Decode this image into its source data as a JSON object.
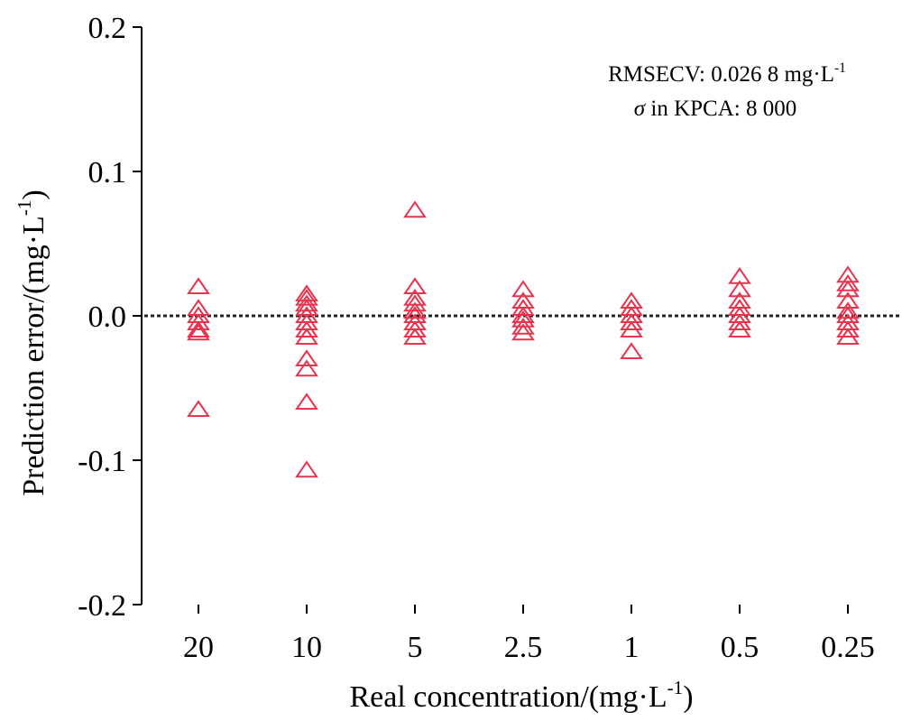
{
  "chart_data": {
    "type": "scatter",
    "y_label": {
      "text": "Prediction error/(mg·L",
      "sup": "-1",
      "end": ")"
    },
    "x_label": {
      "text": "Real concentration/(mg·L",
      "sup": "-1",
      "end": ")"
    },
    "annotations": [
      {
        "text": "RMSECV: 0.026 8 mg·L",
        "sup": "-1"
      },
      {
        "symbol": "σ",
        "text": " in KPCA: 8 000"
      }
    ],
    "categories": [
      "20",
      "10",
      "5",
      "2.5",
      "1",
      "0.5",
      "0.25"
    ],
    "series": [
      {
        "color": "#e8344e",
        "values": [
          [
            0.02,
            0.005,
            0,
            -0.005,
            -0.01,
            -0.012,
            -0.065
          ],
          [
            0.015,
            0.012,
            0.008,
            0.005,
            0,
            -0.005,
            -0.01,
            -0.015,
            -0.03,
            -0.037,
            -0.06,
            -0.107
          ],
          [
            0.073,
            0.02,
            0.012,
            0.008,
            0.003,
            0,
            -0.005,
            -0.01,
            -0.015
          ],
          [
            0.018,
            0.01,
            0.005,
            0,
            -0.003,
            -0.008,
            -0.012
          ],
          [
            0.01,
            0.005,
            0,
            -0.005,
            -0.01,
            -0.025
          ],
          [
            0.027,
            0.018,
            0.01,
            0.005,
            0,
            -0.005,
            -0.01
          ],
          [
            0.028,
            0.022,
            0.018,
            0.01,
            0.003,
            0,
            -0.005,
            -0.01,
            -0.015
          ]
        ]
      }
    ],
    "reference_line": 0,
    "ylim": [
      -0.2,
      0.2
    ],
    "yticks": [
      -0.2,
      -0.1,
      {
        "value": 0,
        "label": "0.0"
      },
      0.1,
      0.2
    ]
  }
}
